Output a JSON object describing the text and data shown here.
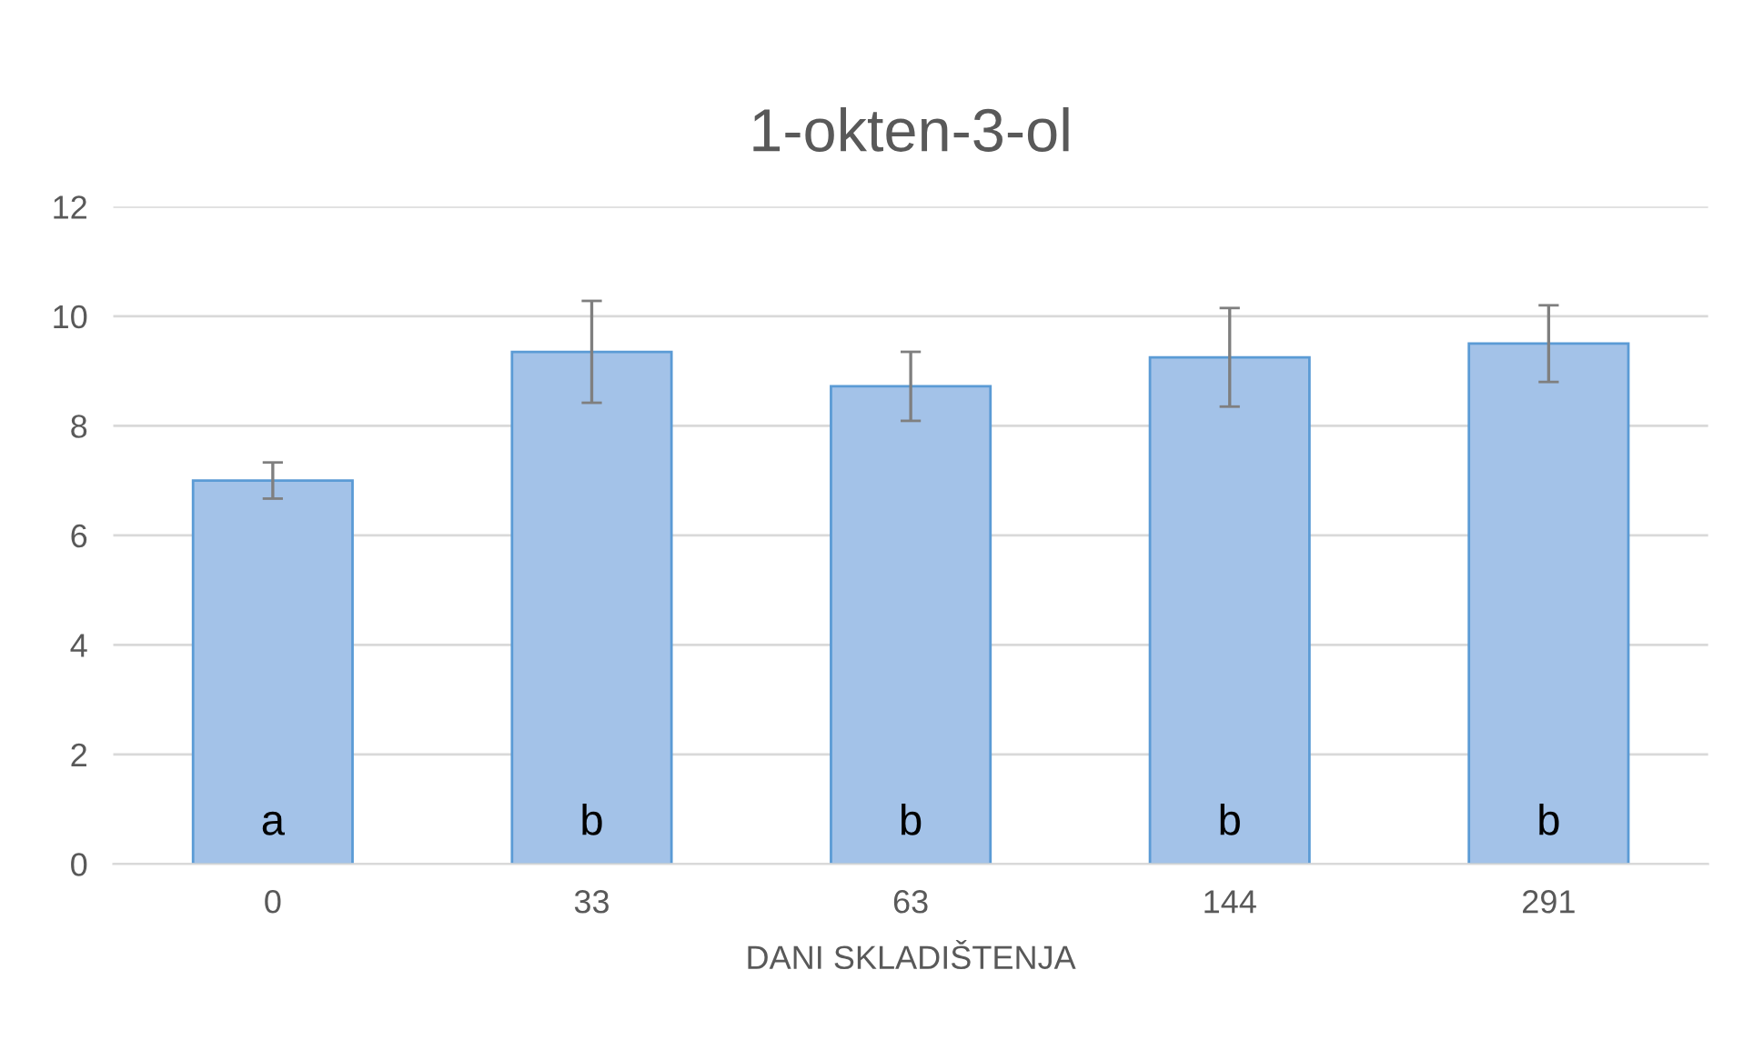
{
  "chart_data": {
    "type": "bar",
    "title": "1-okten-3-ol",
    "xlabel": "DANI SKLADIŠTENJA",
    "categories": [
      "0",
      "33",
      "63",
      "144",
      "291"
    ],
    "values": [
      7.0,
      9.35,
      8.72,
      9.25,
      9.5
    ],
    "errors": [
      0.33,
      0.93,
      0.63,
      0.9,
      0.7
    ],
    "color": "#a3c2e8",
    "ylim": [
      0,
      12
    ],
    "yticks": [
      0,
      2,
      4,
      6,
      8,
      10,
      12
    ],
    "grid": "y",
    "value_labels": [
      "a",
      "b",
      "b",
      "b",
      "b"
    ]
  }
}
